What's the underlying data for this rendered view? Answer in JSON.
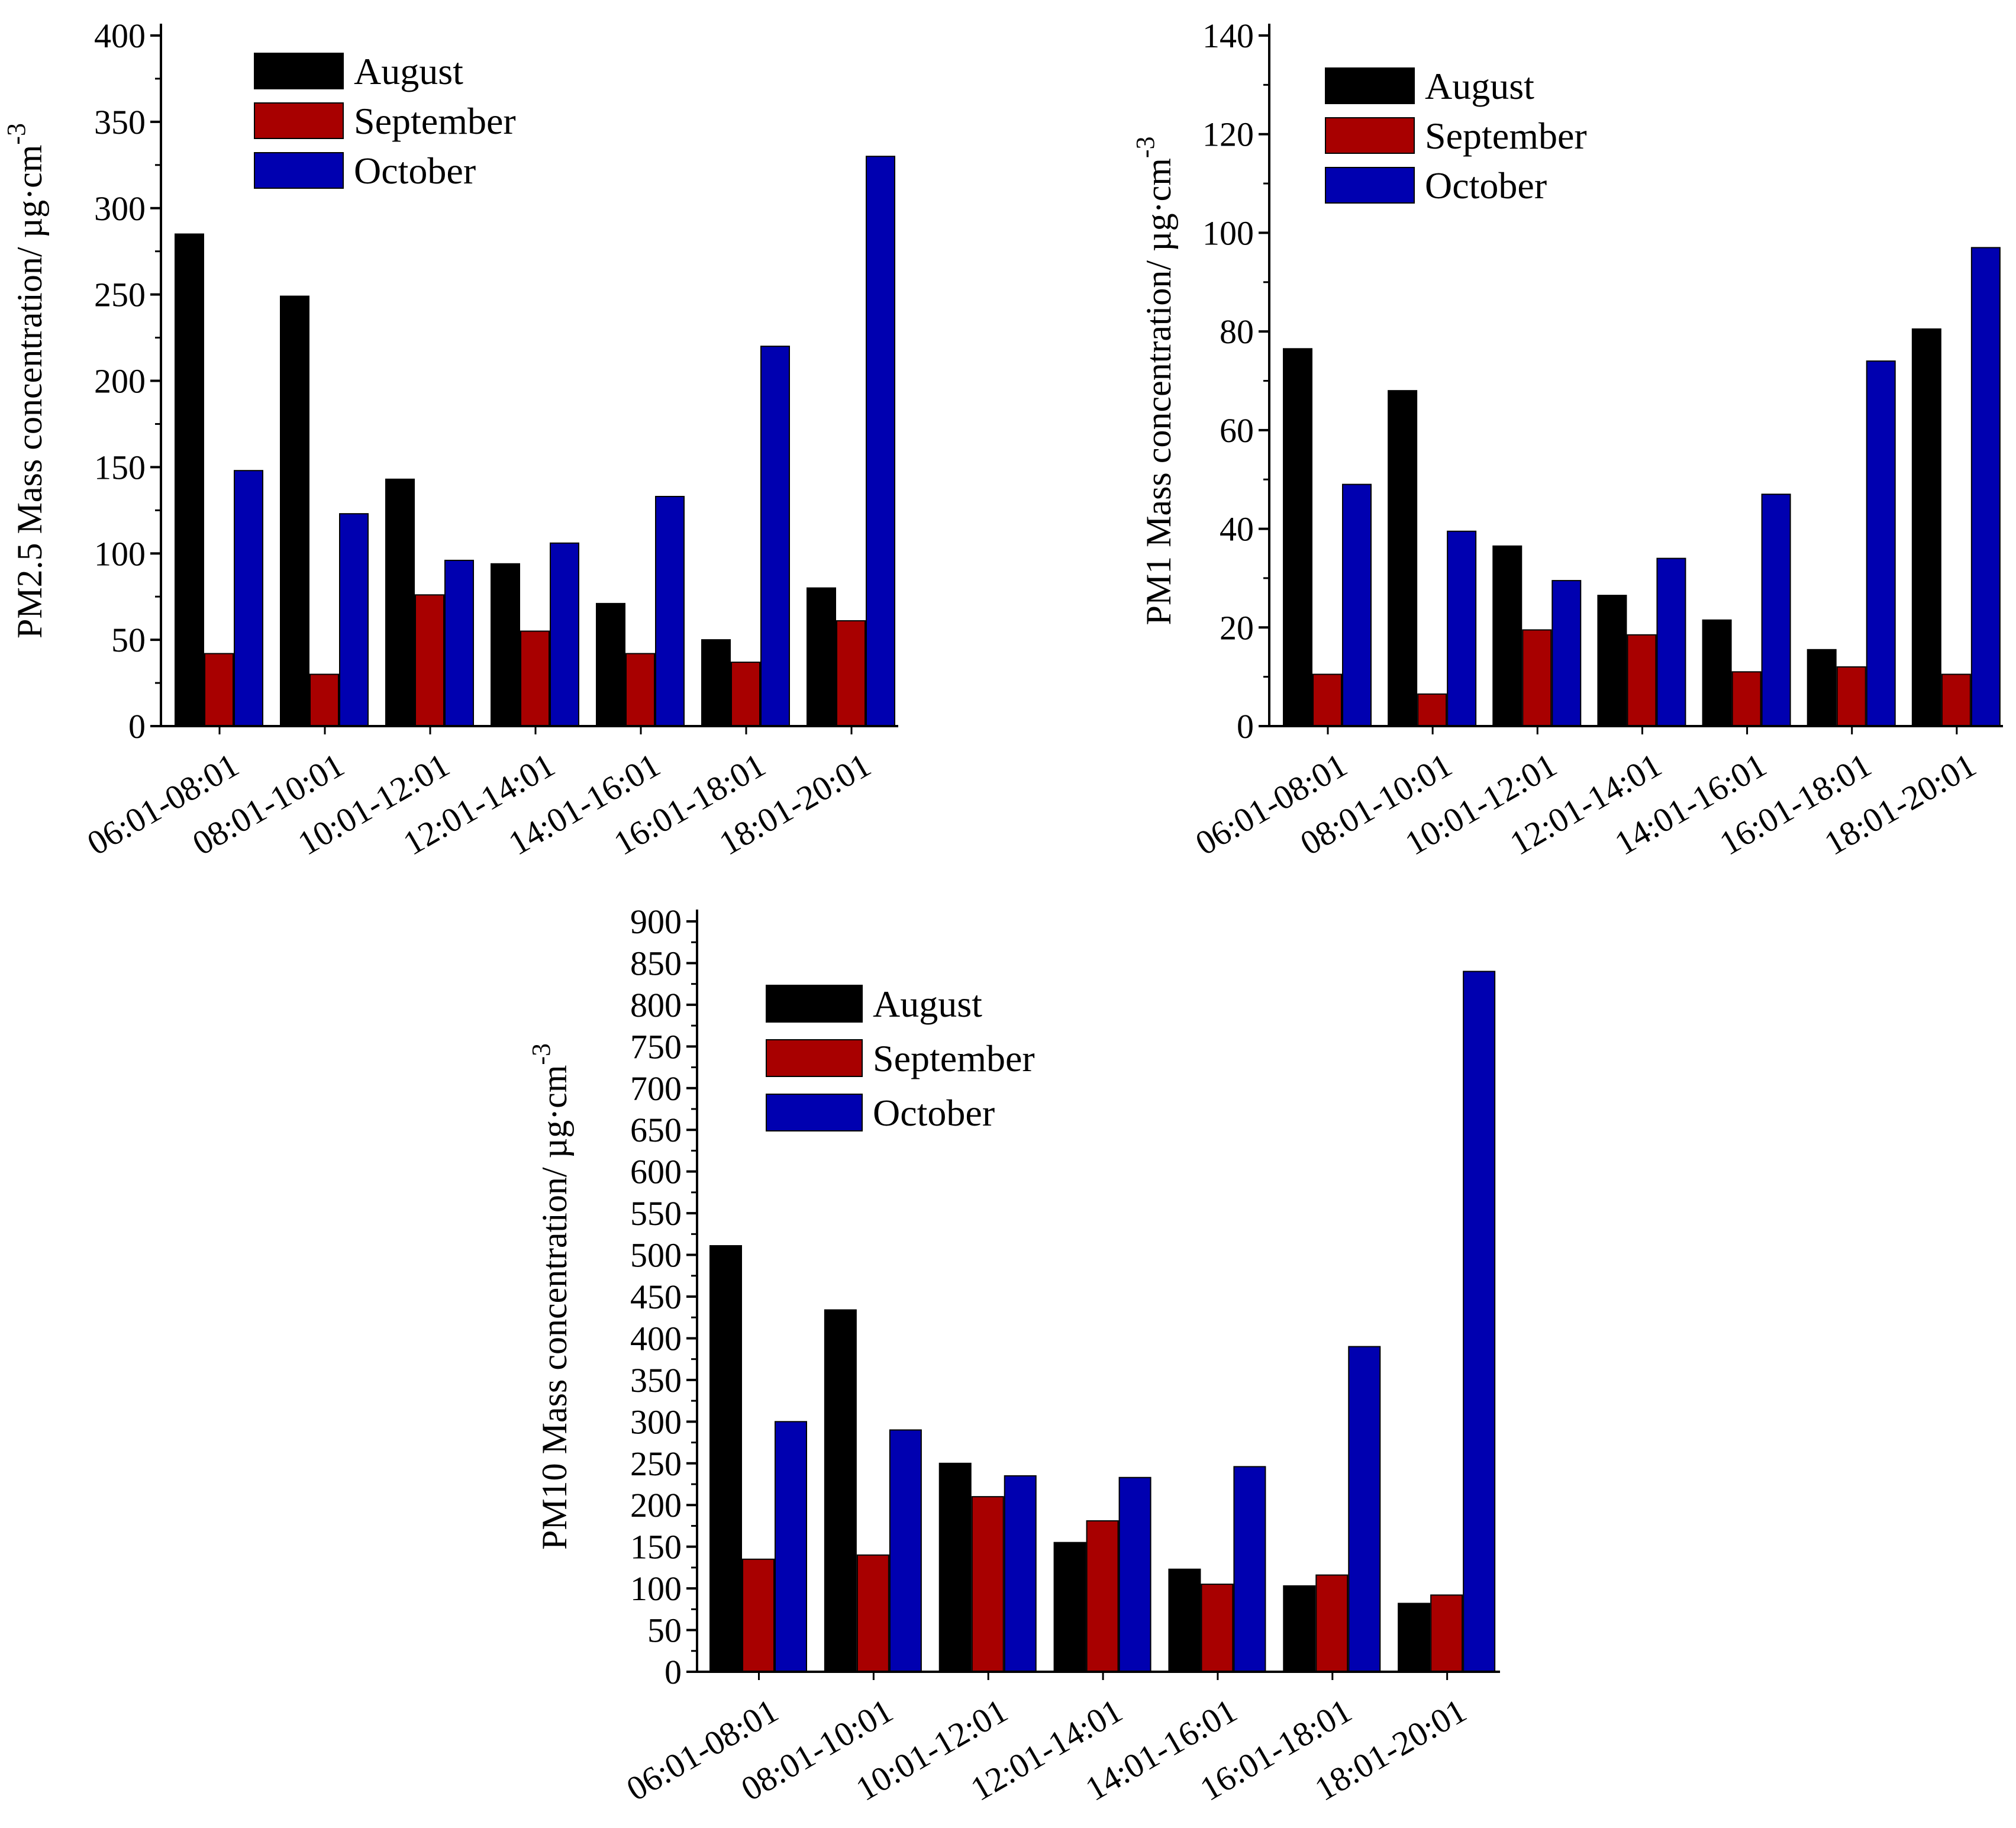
{
  "figure": {
    "colors": {
      "August": "#000000",
      "September": "#a80000",
      "October": "#0000b0"
    }
  },
  "chart_data": [
    {
      "id": "pm25",
      "type": "bar",
      "title": "",
      "xlabel": "",
      "ylabel": "PM2.5 Mass concentration/ µg·cm",
      "ylabel_superscript": "-3",
      "ylim": [
        0,
        400
      ],
      "yticks": [
        0,
        50,
        100,
        150,
        200,
        250,
        300,
        350,
        400
      ],
      "grid": false,
      "legend_position": "top-left",
      "categories": [
        "06:01-08:01",
        "08:01-10:01",
        "10:01-12:01",
        "12:01-14:01",
        "14:01-16:01",
        "16:01-18:01",
        "18:01-20:01"
      ],
      "series": [
        {
          "name": "August",
          "color": "#000000",
          "values": [
            285,
            249,
            143,
            94,
            71,
            50,
            80
          ]
        },
        {
          "name": "September",
          "color": "#a80000",
          "values": [
            42,
            30,
            76,
            55,
            42,
            37,
            61
          ]
        },
        {
          "name": "October",
          "color": "#0000b0",
          "values": [
            148,
            123,
            96,
            106,
            133,
            220,
            330
          ]
        }
      ]
    },
    {
      "id": "pm1",
      "type": "bar",
      "title": "",
      "xlabel": "",
      "ylabel": "PM1 Mass concentration/ µg·cm",
      "ylabel_superscript": "-3",
      "ylim": [
        0,
        140
      ],
      "yticks": [
        0,
        20,
        40,
        60,
        80,
        100,
        120,
        140
      ],
      "grid": false,
      "legend_position": "top-left",
      "categories": [
        "06:01-08:01",
        "08:01-10:01",
        "10:01-12:01",
        "12:01-14:01",
        "14:01-16:01",
        "16:01-18:01",
        "18:01-20:01"
      ],
      "series": [
        {
          "name": "August",
          "color": "#000000",
          "values": [
            76.5,
            68,
            36.5,
            26.5,
            21.5,
            15.5,
            80.5
          ]
        },
        {
          "name": "September",
          "color": "#a80000",
          "values": [
            10.5,
            6.5,
            19.5,
            18.5,
            11,
            12,
            10.5
          ]
        },
        {
          "name": "October",
          "color": "#0000b0",
          "values": [
            49,
            39.5,
            29.5,
            34,
            47,
            74,
            97
          ]
        }
      ]
    },
    {
      "id": "pm10",
      "type": "bar",
      "title": "",
      "xlabel": "",
      "ylabel": "PM10 Mass concentration/ µg·cm",
      "ylabel_superscript": "-3",
      "ylim": [
        0,
        900
      ],
      "yticks": [
        0,
        50,
        100,
        150,
        200,
        250,
        300,
        350,
        400,
        450,
        500,
        550,
        600,
        650,
        700,
        750,
        800,
        850,
        900
      ],
      "grid": false,
      "legend_position": "top-left",
      "categories": [
        "06:01-08:01",
        "08:01-10:01",
        "10:01-12:01",
        "12:01-14:01",
        "14:01-16:01",
        "16:01-18:01",
        "18:01-20:01"
      ],
      "series": [
        {
          "name": "August",
          "color": "#000000",
          "values": [
            511,
            434,
            250,
            155,
            123,
            103,
            82
          ]
        },
        {
          "name": "September",
          "color": "#a80000",
          "values": [
            135,
            140,
            210,
            181,
            105,
            116,
            92
          ]
        },
        {
          "name": "October",
          "color": "#0000b0",
          "values": [
            300,
            290,
            235,
            233,
            246,
            390,
            840
          ]
        }
      ]
    }
  ]
}
